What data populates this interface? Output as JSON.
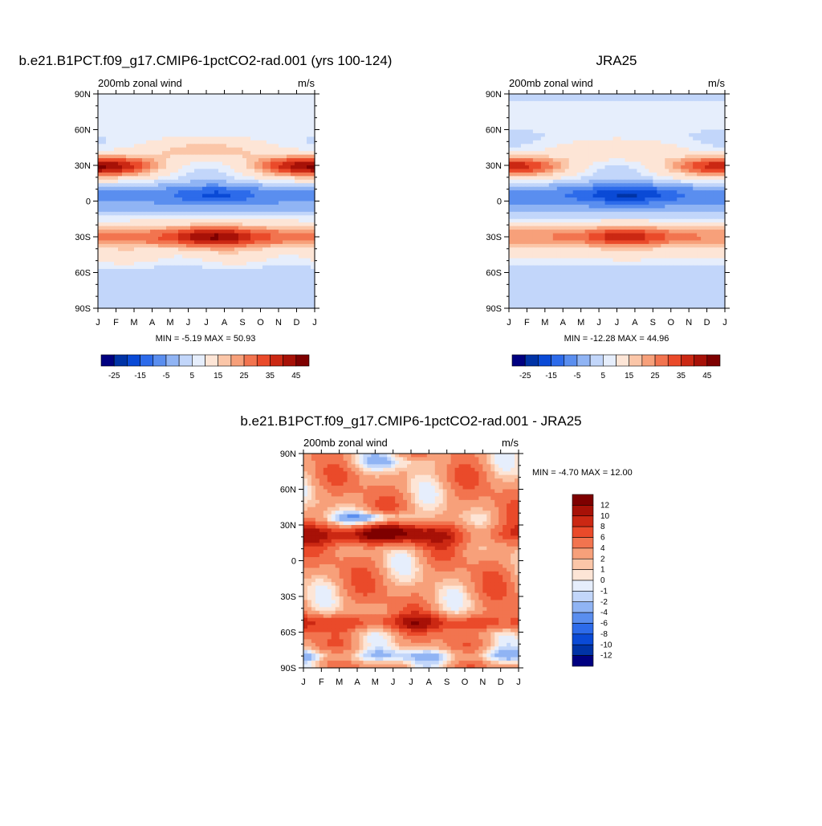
{
  "page": {
    "colors": [
      "#000080",
      "#0033a6",
      "#0a4ad6",
      "#2d6bea",
      "#5a8eef",
      "#90b4f4",
      "#c2d6fa",
      "#e6eefc",
      "#fde5d6",
      "#fbc6a8",
      "#f7a07a",
      "#f2744f",
      "#ea4a2a",
      "#cb2813",
      "#a71107",
      "#7e0000"
    ]
  },
  "chart_data": [
    {
      "id": "model",
      "type": "heatmap",
      "title": "b.e21.B1PCT.f09_g17.CMIP6-1pctCO2-rad.001 (yrs 100-124)",
      "subtitle_left": "200mb zonal wind",
      "subtitle_right": "m/s",
      "x_ticks": [
        "J",
        "F",
        "M",
        "A",
        "M",
        "J",
        "J",
        "A",
        "S",
        "O",
        "N",
        "D",
        "J"
      ],
      "y_ticks": [
        "90N",
        "60N",
        "30N",
        "0",
        "30S",
        "60S",
        "90S"
      ],
      "ylim": [
        -90,
        90
      ],
      "minmax_text": "MIN =  -5.19 MAX =  50.93",
      "min": -5.19,
      "max": 50.93,
      "colorbar": {
        "orientation": "horizontal",
        "levels": [
          -30,
          -25,
          -20,
          -15,
          -10,
          -5,
          0,
          5,
          10,
          15,
          20,
          25,
          30,
          35,
          40,
          45
        ],
        "labels": [
          "-25",
          "-15",
          "-5",
          "5",
          "15",
          "25",
          "35",
          "45"
        ]
      }
    },
    {
      "id": "obs",
      "type": "heatmap",
      "title": "JRA25",
      "subtitle_left": "200mb zonal wind",
      "subtitle_right": "m/s",
      "x_ticks": [
        "J",
        "F",
        "M",
        "A",
        "M",
        "J",
        "J",
        "A",
        "S",
        "O",
        "N",
        "D",
        "J"
      ],
      "y_ticks": [
        "90N",
        "60N",
        "30N",
        "0",
        "30S",
        "60S",
        "90S"
      ],
      "ylim": [
        -90,
        90
      ],
      "minmax_text": "MIN =  -12.28 MAX =  44.96",
      "min": -12.28,
      "max": 44.96,
      "colorbar": {
        "orientation": "horizontal",
        "levels": [
          -30,
          -25,
          -20,
          -15,
          -10,
          -5,
          0,
          5,
          10,
          15,
          20,
          25,
          30,
          35,
          40,
          45
        ],
        "labels": [
          "-25",
          "-15",
          "-5",
          "5",
          "15",
          "25",
          "35",
          "45"
        ]
      }
    },
    {
      "id": "diff",
      "type": "heatmap",
      "title": "b.e21.B1PCT.f09_g17.CMIP6-1pctCO2-rad.001 - JRA25",
      "subtitle_left": "200mb zonal wind",
      "subtitle_right": "m/s",
      "x_ticks": [
        "J",
        "F",
        "M",
        "A",
        "M",
        "J",
        "J",
        "A",
        "S",
        "O",
        "N",
        "D",
        "J"
      ],
      "y_ticks": [
        "90N",
        "60N",
        "30N",
        "0",
        "30S",
        "60S",
        "90S"
      ],
      "ylim": [
        -90,
        90
      ],
      "minmax_text": "MIN =  -4.70 MAX =  12.00",
      "min": -4.7,
      "max": 12.0,
      "colorbar": {
        "orientation": "vertical",
        "levels": [
          -12,
          -10,
          -8,
          -6,
          -4,
          -2,
          -1,
          0,
          1,
          2,
          4,
          6,
          8,
          10,
          12
        ],
        "labels": [
          "12",
          "10",
          "8",
          "6",
          "4",
          "2",
          "1",
          "0",
          "-1",
          "-2",
          "-4",
          "-6",
          "-8",
          "-10",
          "-12"
        ]
      }
    }
  ]
}
